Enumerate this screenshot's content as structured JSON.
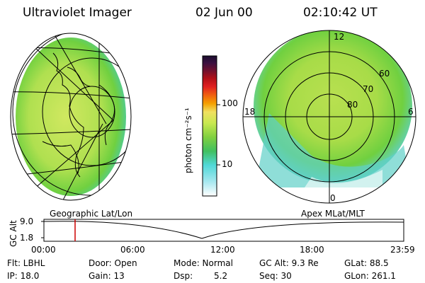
{
  "header": {
    "instrument": "Ultraviolet Imager",
    "date": "02 Jun 00",
    "time": "02:10:42 UT"
  },
  "colorbar": {
    "label": "photon cm⁻²s⁻¹",
    "ticks": [
      "100",
      "10"
    ],
    "colors": [
      "#1a0d2e",
      "#3b1040",
      "#6b1030",
      "#b01018",
      "#e02020",
      "#f06010",
      "#f5a000",
      "#f0e060",
      "#c8e850",
      "#80d040",
      "#40c060",
      "#50d8d8",
      "#a8e8f0",
      "#ffffff"
    ]
  },
  "polar_plot": {
    "mlt_labels": [
      "12",
      "18",
      "6",
      "0"
    ],
    "lat_labels": [
      "60",
      "70",
      "80"
    ]
  },
  "timeline": {
    "left_label": "Geographic Lat/Lon",
    "right_label": "Apex MLat/MLT",
    "axis_title": "GC Alt",
    "y_ticks": [
      "9.0",
      "1.8"
    ],
    "x_ticks": [
      "00:00",
      "06:00",
      "12:00",
      "18:00",
      "23:59"
    ],
    "marker_color": "#cc0000"
  },
  "info": {
    "flt": "Flt: LBHL",
    "ip": "IP: 18.0",
    "door": "Door: Open",
    "gain": "Gain: 13",
    "mode": "Mode: Normal",
    "dsp_label": "Dsp:",
    "dsp_value": "5.2",
    "gc_alt": "GC Alt: 9.3 Re",
    "seq": "Seq: 30",
    "glat": "GLat:  88.5",
    "glon": "GLon: 261.1"
  }
}
